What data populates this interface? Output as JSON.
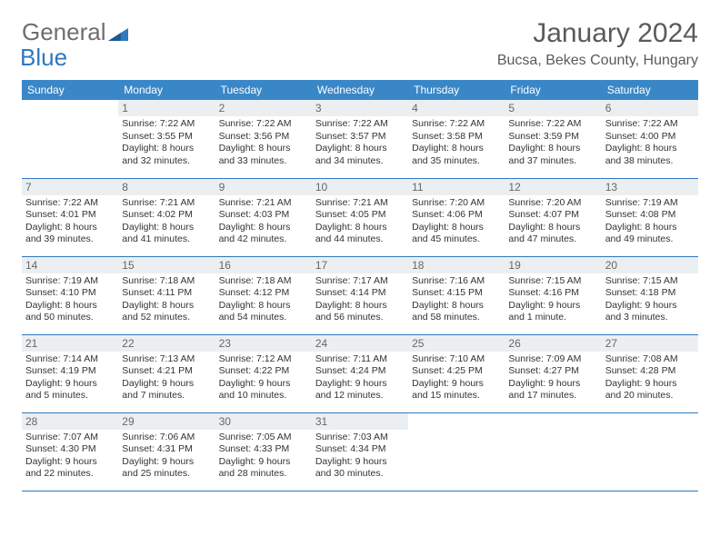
{
  "logo": {
    "text1": "General",
    "text2": "Blue",
    "icon_color": "#2f78bf"
  },
  "title": "January 2024",
  "location": "Bucsa, Bekes County, Hungary",
  "colors": {
    "header_bg": "#3a87c8",
    "header_fg": "#ffffff",
    "daynum_bg": "#eceff1",
    "rule": "#2f78bf",
    "logo_gray": "#6e6e6e",
    "logo_blue": "#2f78bf"
  },
  "weekdays": [
    "Sunday",
    "Monday",
    "Tuesday",
    "Wednesday",
    "Thursday",
    "Friday",
    "Saturday"
  ],
  "weeks": [
    [
      {
        "num": "",
        "sunrise": "",
        "sunset": "",
        "daylight": ""
      },
      {
        "num": "1",
        "sunrise": "Sunrise: 7:22 AM",
        "sunset": "Sunset: 3:55 PM",
        "daylight": "Daylight: 8 hours and 32 minutes."
      },
      {
        "num": "2",
        "sunrise": "Sunrise: 7:22 AM",
        "sunset": "Sunset: 3:56 PM",
        "daylight": "Daylight: 8 hours and 33 minutes."
      },
      {
        "num": "3",
        "sunrise": "Sunrise: 7:22 AM",
        "sunset": "Sunset: 3:57 PM",
        "daylight": "Daylight: 8 hours and 34 minutes."
      },
      {
        "num": "4",
        "sunrise": "Sunrise: 7:22 AM",
        "sunset": "Sunset: 3:58 PM",
        "daylight": "Daylight: 8 hours and 35 minutes."
      },
      {
        "num": "5",
        "sunrise": "Sunrise: 7:22 AM",
        "sunset": "Sunset: 3:59 PM",
        "daylight": "Daylight: 8 hours and 37 minutes."
      },
      {
        "num": "6",
        "sunrise": "Sunrise: 7:22 AM",
        "sunset": "Sunset: 4:00 PM",
        "daylight": "Daylight: 8 hours and 38 minutes."
      }
    ],
    [
      {
        "num": "7",
        "sunrise": "Sunrise: 7:22 AM",
        "sunset": "Sunset: 4:01 PM",
        "daylight": "Daylight: 8 hours and 39 minutes."
      },
      {
        "num": "8",
        "sunrise": "Sunrise: 7:21 AM",
        "sunset": "Sunset: 4:02 PM",
        "daylight": "Daylight: 8 hours and 41 minutes."
      },
      {
        "num": "9",
        "sunrise": "Sunrise: 7:21 AM",
        "sunset": "Sunset: 4:03 PM",
        "daylight": "Daylight: 8 hours and 42 minutes."
      },
      {
        "num": "10",
        "sunrise": "Sunrise: 7:21 AM",
        "sunset": "Sunset: 4:05 PM",
        "daylight": "Daylight: 8 hours and 44 minutes."
      },
      {
        "num": "11",
        "sunrise": "Sunrise: 7:20 AM",
        "sunset": "Sunset: 4:06 PM",
        "daylight": "Daylight: 8 hours and 45 minutes."
      },
      {
        "num": "12",
        "sunrise": "Sunrise: 7:20 AM",
        "sunset": "Sunset: 4:07 PM",
        "daylight": "Daylight: 8 hours and 47 minutes."
      },
      {
        "num": "13",
        "sunrise": "Sunrise: 7:19 AM",
        "sunset": "Sunset: 4:08 PM",
        "daylight": "Daylight: 8 hours and 49 minutes."
      }
    ],
    [
      {
        "num": "14",
        "sunrise": "Sunrise: 7:19 AM",
        "sunset": "Sunset: 4:10 PM",
        "daylight": "Daylight: 8 hours and 50 minutes."
      },
      {
        "num": "15",
        "sunrise": "Sunrise: 7:18 AM",
        "sunset": "Sunset: 4:11 PM",
        "daylight": "Daylight: 8 hours and 52 minutes."
      },
      {
        "num": "16",
        "sunrise": "Sunrise: 7:18 AM",
        "sunset": "Sunset: 4:12 PM",
        "daylight": "Daylight: 8 hours and 54 minutes."
      },
      {
        "num": "17",
        "sunrise": "Sunrise: 7:17 AM",
        "sunset": "Sunset: 4:14 PM",
        "daylight": "Daylight: 8 hours and 56 minutes."
      },
      {
        "num": "18",
        "sunrise": "Sunrise: 7:16 AM",
        "sunset": "Sunset: 4:15 PM",
        "daylight": "Daylight: 8 hours and 58 minutes."
      },
      {
        "num": "19",
        "sunrise": "Sunrise: 7:15 AM",
        "sunset": "Sunset: 4:16 PM",
        "daylight": "Daylight: 9 hours and 1 minute."
      },
      {
        "num": "20",
        "sunrise": "Sunrise: 7:15 AM",
        "sunset": "Sunset: 4:18 PM",
        "daylight": "Daylight: 9 hours and 3 minutes."
      }
    ],
    [
      {
        "num": "21",
        "sunrise": "Sunrise: 7:14 AM",
        "sunset": "Sunset: 4:19 PM",
        "daylight": "Daylight: 9 hours and 5 minutes."
      },
      {
        "num": "22",
        "sunrise": "Sunrise: 7:13 AM",
        "sunset": "Sunset: 4:21 PM",
        "daylight": "Daylight: 9 hours and 7 minutes."
      },
      {
        "num": "23",
        "sunrise": "Sunrise: 7:12 AM",
        "sunset": "Sunset: 4:22 PM",
        "daylight": "Daylight: 9 hours and 10 minutes."
      },
      {
        "num": "24",
        "sunrise": "Sunrise: 7:11 AM",
        "sunset": "Sunset: 4:24 PM",
        "daylight": "Daylight: 9 hours and 12 minutes."
      },
      {
        "num": "25",
        "sunrise": "Sunrise: 7:10 AM",
        "sunset": "Sunset: 4:25 PM",
        "daylight": "Daylight: 9 hours and 15 minutes."
      },
      {
        "num": "26",
        "sunrise": "Sunrise: 7:09 AM",
        "sunset": "Sunset: 4:27 PM",
        "daylight": "Daylight: 9 hours and 17 minutes."
      },
      {
        "num": "27",
        "sunrise": "Sunrise: 7:08 AM",
        "sunset": "Sunset: 4:28 PM",
        "daylight": "Daylight: 9 hours and 20 minutes."
      }
    ],
    [
      {
        "num": "28",
        "sunrise": "Sunrise: 7:07 AM",
        "sunset": "Sunset: 4:30 PM",
        "daylight": "Daylight: 9 hours and 22 minutes."
      },
      {
        "num": "29",
        "sunrise": "Sunrise: 7:06 AM",
        "sunset": "Sunset: 4:31 PM",
        "daylight": "Daylight: 9 hours and 25 minutes."
      },
      {
        "num": "30",
        "sunrise": "Sunrise: 7:05 AM",
        "sunset": "Sunset: 4:33 PM",
        "daylight": "Daylight: 9 hours and 28 minutes."
      },
      {
        "num": "31",
        "sunrise": "Sunrise: 7:03 AM",
        "sunset": "Sunset: 4:34 PM",
        "daylight": "Daylight: 9 hours and 30 minutes."
      },
      {
        "num": "",
        "sunrise": "",
        "sunset": "",
        "daylight": ""
      },
      {
        "num": "",
        "sunrise": "",
        "sunset": "",
        "daylight": ""
      },
      {
        "num": "",
        "sunrise": "",
        "sunset": "",
        "daylight": ""
      }
    ]
  ]
}
